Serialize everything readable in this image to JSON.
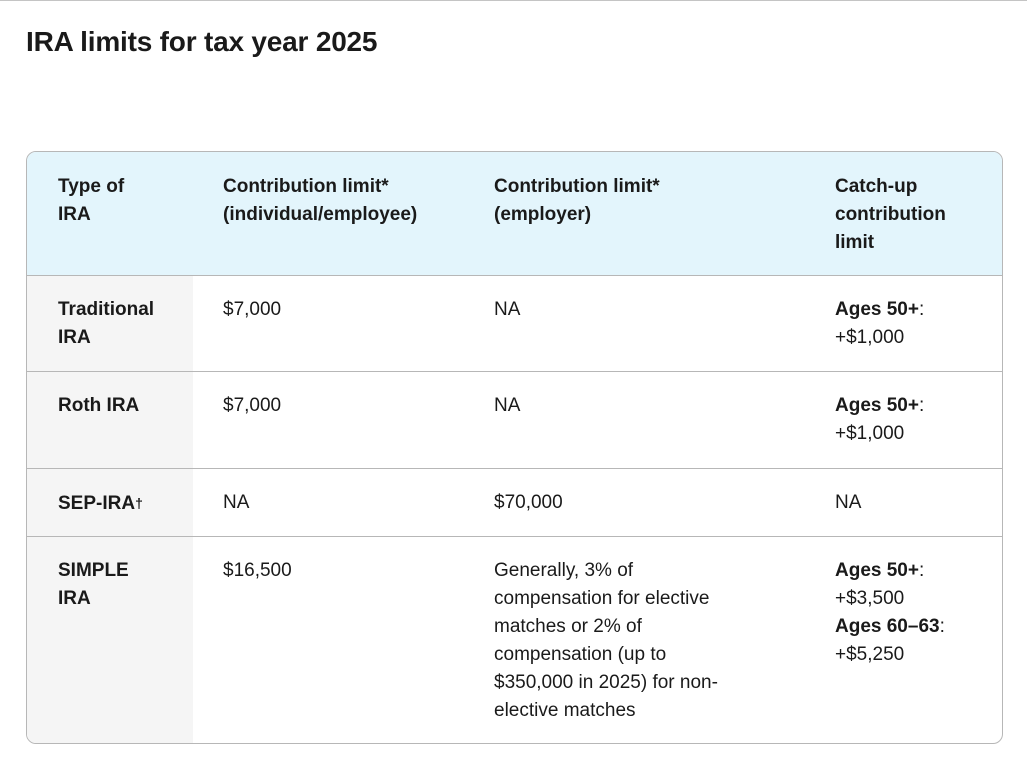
{
  "page": {
    "title": "IRA limits for tax year 2025"
  },
  "table": {
    "headers": {
      "type": "Type of\nIRA",
      "individual": "Contribution limit*\n(individual/employee)",
      "employer": "Contribution limit*\n(employer)",
      "catchup": "Catch-up\ncontribution\nlimit"
    },
    "rows": [
      {
        "type": "Traditional\nIRA",
        "individual": "$7,000",
        "employer": "NA",
        "catchup": [
          {
            "label": "Ages 50+",
            "value": "+$1,000"
          }
        ]
      },
      {
        "type": "Roth IRA",
        "individual": "$7,000",
        "employer": "NA",
        "catchup": [
          {
            "label": "Ages 50+",
            "value": "+$1,000"
          }
        ]
      },
      {
        "type": "SEP-IRA",
        "type_mark": "†",
        "individual": "NA",
        "employer": "$70,000",
        "catchup_text": "NA"
      },
      {
        "type": "SIMPLE\nIRA",
        "individual": "$16,500",
        "employer": "Generally, 3% of\ncompensation for elective\nmatches or 2% of\ncompensation (up to\n$350,000 in 2025) for non-\nelective matches",
        "catchup": [
          {
            "label": "Ages 50+",
            "value": "+$3,500"
          },
          {
            "label": "Ages 60–63",
            "value": "+$5,250"
          }
        ]
      }
    ]
  },
  "colors": {
    "header_bg": "#e3f5fc",
    "row_header_bg": "#f5f5f5",
    "border": "#b7b7b7",
    "text": "#1a1a1a"
  }
}
